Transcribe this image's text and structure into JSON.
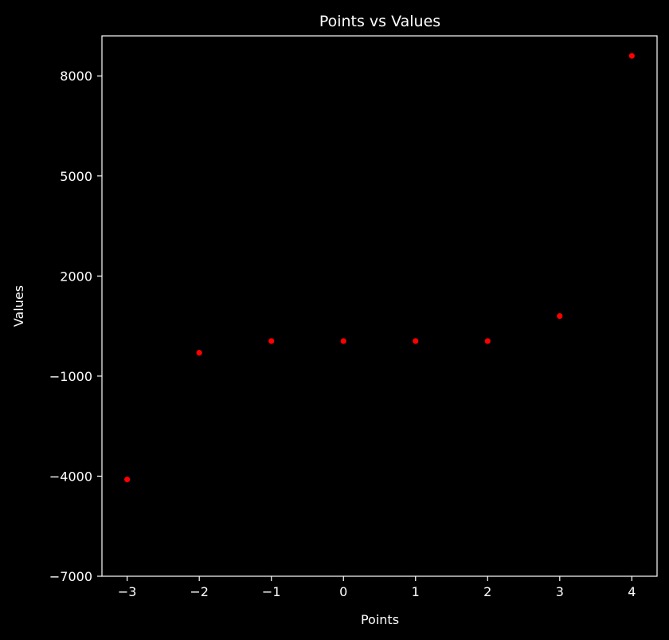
{
  "chart_data": {
    "type": "scatter",
    "title": "Points vs Values",
    "xlabel": "Points",
    "ylabel": "Values",
    "x": [
      -3,
      -2,
      -1,
      0,
      1,
      2,
      3,
      4
    ],
    "y": [
      -4100,
      -300,
      50,
      50,
      50,
      50,
      800,
      8600
    ],
    "xlim": [
      -3.35,
      4.35
    ],
    "ylim": [
      -7000,
      9200
    ],
    "xticks": [
      -3,
      -2,
      -1,
      0,
      1,
      2,
      3,
      4
    ],
    "xtick_labels": [
      "−3",
      "−2",
      "−1",
      "0",
      "1",
      "2",
      "3",
      "4"
    ],
    "yticks": [
      -7000,
      -4000,
      -1000,
      2000,
      5000,
      8000
    ],
    "ytick_labels": [
      "−7000",
      "−4000",
      "−1000",
      "2000",
      "5000",
      "8000"
    ],
    "grid": false,
    "colors": {
      "background": "#000000",
      "axes": "#ffffff",
      "marker": "#ff0000"
    }
  }
}
